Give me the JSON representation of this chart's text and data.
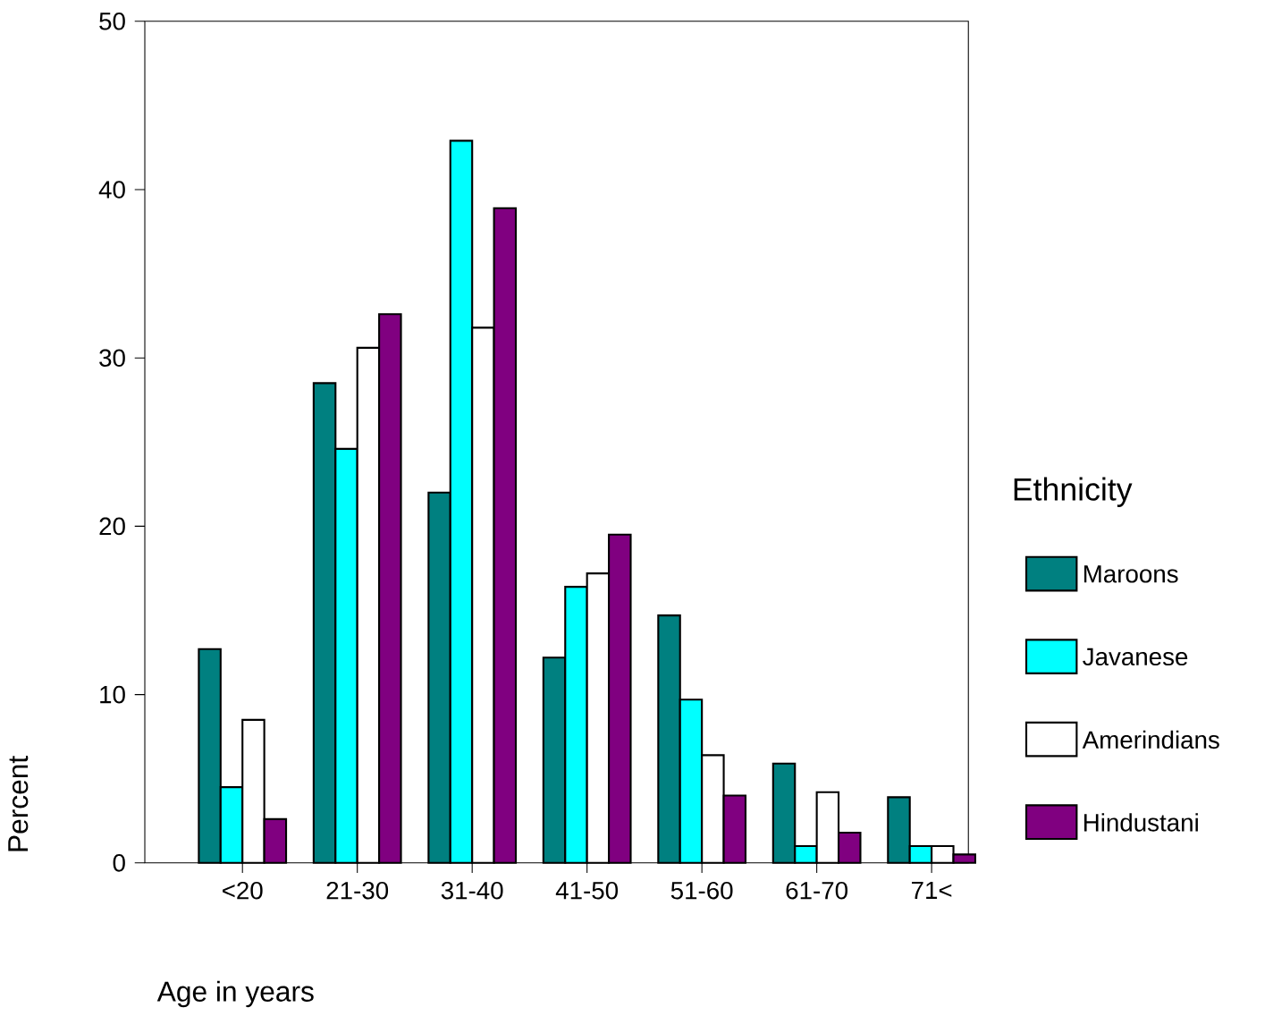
{
  "chart_data": {
    "type": "bar",
    "xlabel": "Age in years",
    "ylabel": "Percent",
    "legend_title": "Ethnicity",
    "categories": [
      "<20",
      "21-30",
      "31-40",
      "41-50",
      "51-60",
      "61-70",
      "71<"
    ],
    "series": [
      {
        "name": "Maroons",
        "color": "#008080",
        "values": [
          12.7,
          28.5,
          22.0,
          12.2,
          14.7,
          5.9,
          3.9
        ]
      },
      {
        "name": "Javanese",
        "color": "#00ffff",
        "values": [
          4.5,
          24.6,
          42.9,
          16.4,
          9.7,
          1.0,
          1.0
        ]
      },
      {
        "name": "Amerindians",
        "color": "#ffffff",
        "values": [
          8.5,
          30.6,
          31.8,
          17.2,
          6.4,
          4.2,
          1.0
        ]
      },
      {
        "name": "Hindustani",
        "color": "#800080",
        "values": [
          2.6,
          32.6,
          38.9,
          19.5,
          4.0,
          1.8,
          0.5
        ]
      }
    ],
    "ylim": [
      0,
      50
    ],
    "yticks": [
      0,
      10,
      20,
      30,
      40,
      50
    ],
    "grid": false,
    "legend": "right"
  }
}
